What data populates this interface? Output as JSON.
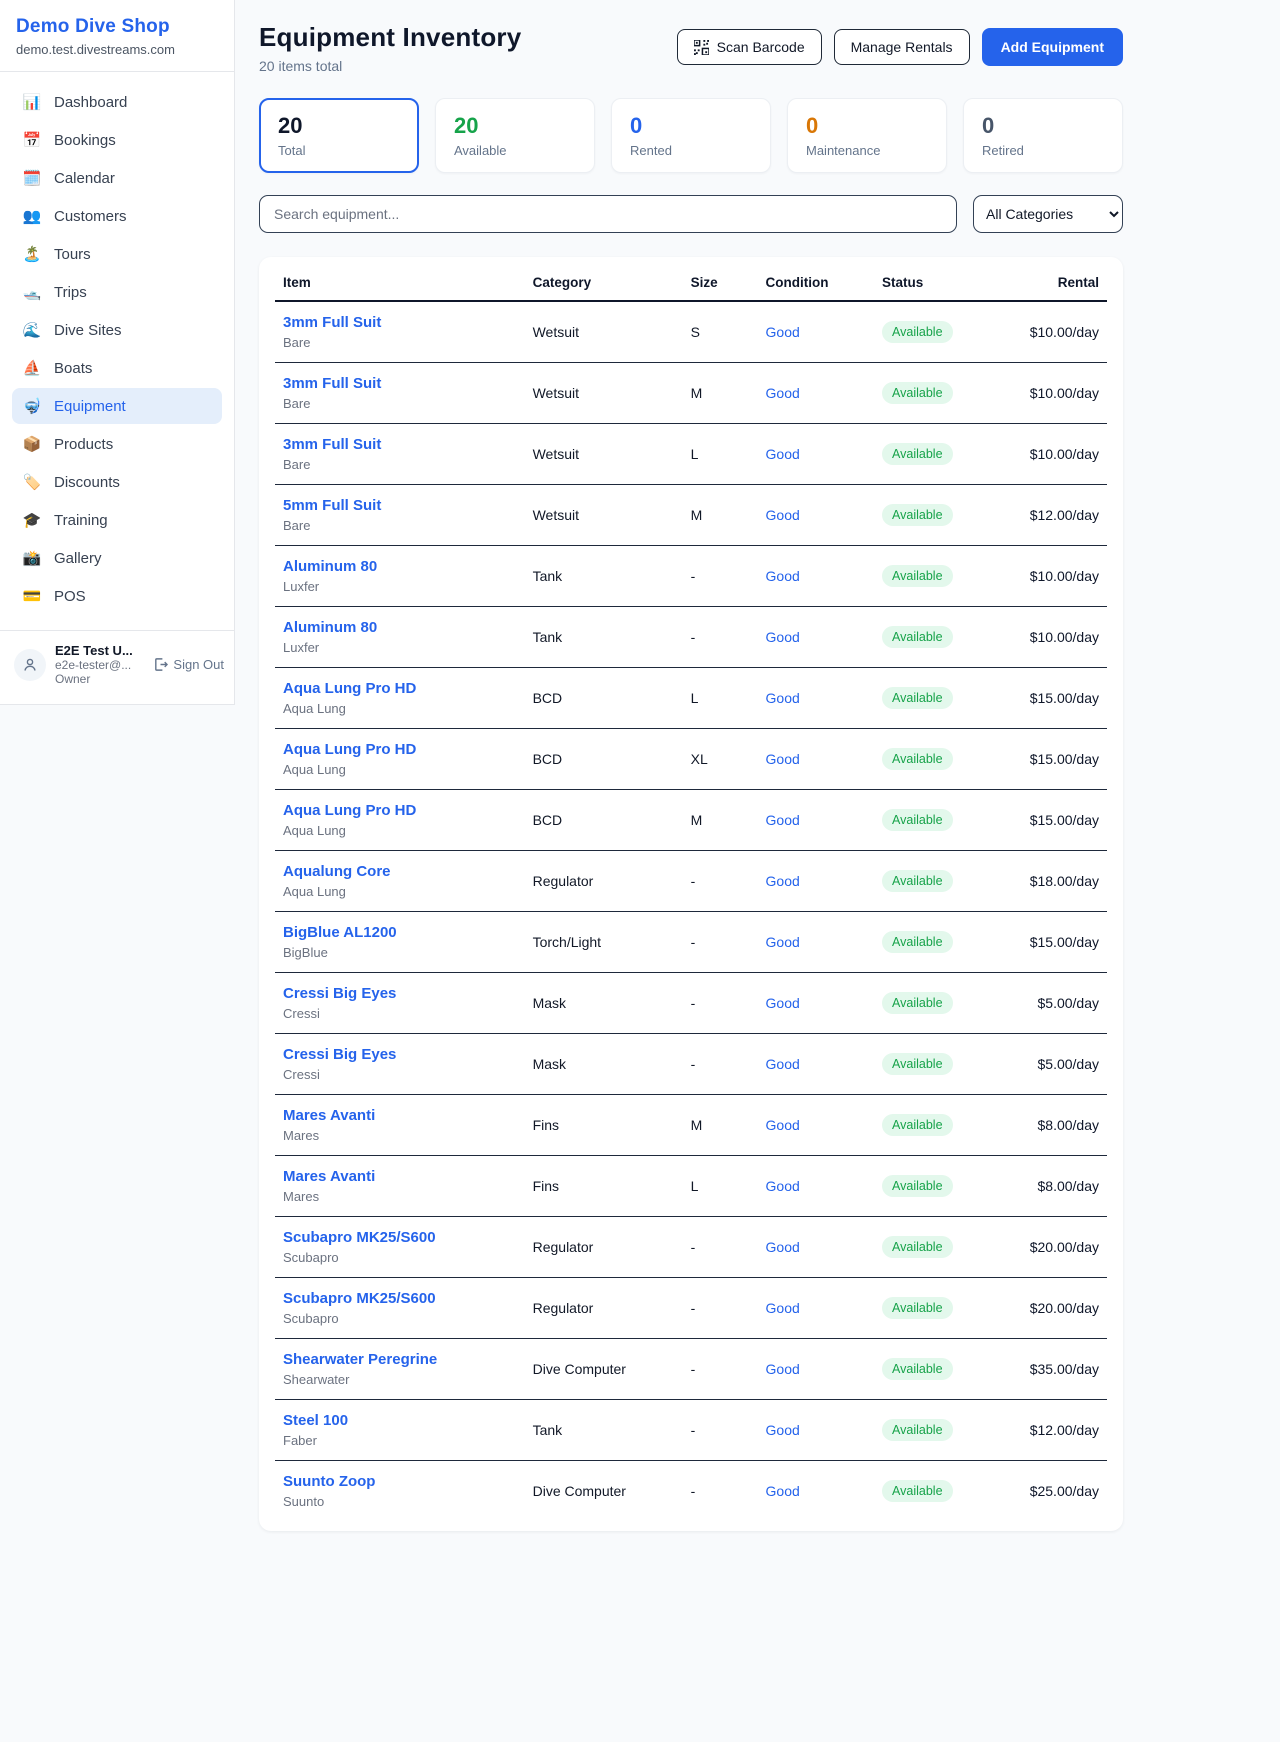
{
  "sidebar": {
    "brand": "Demo Dive Shop",
    "domain": "demo.test.divestreams.com",
    "nav": [
      {
        "icon": "📊",
        "icon_name": "dashboard-chart-icon",
        "label": "Dashboard",
        "active": false
      },
      {
        "icon": "📅",
        "icon_name": "bookings-calendar-icon",
        "label": "Bookings",
        "active": false
      },
      {
        "icon": "🗓️",
        "icon_name": "calendar-icon",
        "label": "Calendar",
        "active": false
      },
      {
        "icon": "👥",
        "icon_name": "customers-people-icon",
        "label": "Customers",
        "active": false
      },
      {
        "icon": "🏝️",
        "icon_name": "tours-island-icon",
        "label": "Tours",
        "active": false
      },
      {
        "icon": "🛥️",
        "icon_name": "trips-boat-icon",
        "label": "Trips",
        "active": false
      },
      {
        "icon": "🌊",
        "icon_name": "dive-sites-wave-icon",
        "label": "Dive Sites",
        "active": false
      },
      {
        "icon": "⛵",
        "icon_name": "boats-sailboat-icon",
        "label": "Boats",
        "active": false
      },
      {
        "icon": "🤿",
        "icon_name": "equipment-diving-mask-icon",
        "label": "Equipment",
        "active": true
      },
      {
        "icon": "📦",
        "icon_name": "products-package-icon",
        "label": "Products",
        "active": false
      },
      {
        "icon": "🏷️",
        "icon_name": "discounts-tag-icon",
        "label": "Discounts",
        "active": false
      },
      {
        "icon": "🎓",
        "icon_name": "training-cap-icon",
        "label": "Training",
        "active": false
      },
      {
        "icon": "📸",
        "icon_name": "gallery-camera-icon",
        "label": "Gallery",
        "active": false
      },
      {
        "icon": "💳",
        "icon_name": "pos-card-icon",
        "label": "POS",
        "active": false
      }
    ],
    "user": {
      "name": "E2E Test U...",
      "email": "e2e-tester@...",
      "role": "Owner",
      "sign_out_label": "Sign Out"
    }
  },
  "header": {
    "title": "Equipment Inventory",
    "subtitle": "20 items total",
    "scan_barcode_label": "Scan Barcode",
    "manage_rentals_label": "Manage Rentals",
    "add_equipment_label": "Add Equipment"
  },
  "stats": [
    {
      "value": "20",
      "label": "Total",
      "color": "#0f172a",
      "active": true
    },
    {
      "value": "20",
      "label": "Available",
      "color": "#16a34a",
      "active": false
    },
    {
      "value": "0",
      "label": "Rented",
      "color": "#2563eb",
      "active": false
    },
    {
      "value": "0",
      "label": "Maintenance",
      "color": "#d97706",
      "active": false
    },
    {
      "value": "0",
      "label": "Retired",
      "color": "#475569",
      "active": false
    }
  ],
  "filters": {
    "search_placeholder": "Search equipment...",
    "category_selected": "All Categories"
  },
  "table": {
    "columns": [
      "Item",
      "Category",
      "Size",
      "Condition",
      "Status",
      "Rental"
    ],
    "rows": [
      {
        "item": "3mm Full Suit",
        "brand": "Bare",
        "category": "Wetsuit",
        "size": "S",
        "condition": "Good",
        "status": "Available",
        "rental": "$10.00/day"
      },
      {
        "item": "3mm Full Suit",
        "brand": "Bare",
        "category": "Wetsuit",
        "size": "M",
        "condition": "Good",
        "status": "Available",
        "rental": "$10.00/day"
      },
      {
        "item": "3mm Full Suit",
        "brand": "Bare",
        "category": "Wetsuit",
        "size": "L",
        "condition": "Good",
        "status": "Available",
        "rental": "$10.00/day"
      },
      {
        "item": "5mm Full Suit",
        "brand": "Bare",
        "category": "Wetsuit",
        "size": "M",
        "condition": "Good",
        "status": "Available",
        "rental": "$12.00/day"
      },
      {
        "item": "Aluminum 80",
        "brand": "Luxfer",
        "category": "Tank",
        "size": "-",
        "condition": "Good",
        "status": "Available",
        "rental": "$10.00/day"
      },
      {
        "item": "Aluminum 80",
        "brand": "Luxfer",
        "category": "Tank",
        "size": "-",
        "condition": "Good",
        "status": "Available",
        "rental": "$10.00/day"
      },
      {
        "item": "Aqua Lung Pro HD",
        "brand": "Aqua Lung",
        "category": "BCD",
        "size": "L",
        "condition": "Good",
        "status": "Available",
        "rental": "$15.00/day"
      },
      {
        "item": "Aqua Lung Pro HD",
        "brand": "Aqua Lung",
        "category": "BCD",
        "size": "XL",
        "condition": "Good",
        "status": "Available",
        "rental": "$15.00/day"
      },
      {
        "item": "Aqua Lung Pro HD",
        "brand": "Aqua Lung",
        "category": "BCD",
        "size": "M",
        "condition": "Good",
        "status": "Available",
        "rental": "$15.00/day"
      },
      {
        "item": "Aqualung Core",
        "brand": "Aqua Lung",
        "category": "Regulator",
        "size": "-",
        "condition": "Good",
        "status": "Available",
        "rental": "$18.00/day"
      },
      {
        "item": "BigBlue AL1200",
        "brand": "BigBlue",
        "category": "Torch/Light",
        "size": "-",
        "condition": "Good",
        "status": "Available",
        "rental": "$15.00/day"
      },
      {
        "item": "Cressi Big Eyes",
        "brand": "Cressi",
        "category": "Mask",
        "size": "-",
        "condition": "Good",
        "status": "Available",
        "rental": "$5.00/day"
      },
      {
        "item": "Cressi Big Eyes",
        "brand": "Cressi",
        "category": "Mask",
        "size": "-",
        "condition": "Good",
        "status": "Available",
        "rental": "$5.00/day"
      },
      {
        "item": "Mares Avanti",
        "brand": "Mares",
        "category": "Fins",
        "size": "M",
        "condition": "Good",
        "status": "Available",
        "rental": "$8.00/day"
      },
      {
        "item": "Mares Avanti",
        "brand": "Mares",
        "category": "Fins",
        "size": "L",
        "condition": "Good",
        "status": "Available",
        "rental": "$8.00/day"
      },
      {
        "item": "Scubapro MK25/S600",
        "brand": "Scubapro",
        "category": "Regulator",
        "size": "-",
        "condition": "Good",
        "status": "Available",
        "rental": "$20.00/day"
      },
      {
        "item": "Scubapro MK25/S600",
        "brand": "Scubapro",
        "category": "Regulator",
        "size": "-",
        "condition": "Good",
        "status": "Available",
        "rental": "$20.00/day"
      },
      {
        "item": "Shearwater Peregrine",
        "brand": "Shearwater",
        "category": "Dive Computer",
        "size": "-",
        "condition": "Good",
        "status": "Available",
        "rental": "$35.00/day"
      },
      {
        "item": "Steel 100",
        "brand": "Faber",
        "category": "Tank",
        "size": "-",
        "condition": "Good",
        "status": "Available",
        "rental": "$12.00/day"
      },
      {
        "item": "Suunto Zoop",
        "brand": "Suunto",
        "category": "Dive Computer",
        "size": "-",
        "condition": "Good",
        "status": "Available",
        "rental": "$25.00/day"
      }
    ]
  },
  "colors": {
    "accent_blue": "#2563eb",
    "available_green": "#16a34a",
    "maintenance_orange": "#d97706",
    "retired_gray": "#475569",
    "badge_bg": "#e3f8ec"
  }
}
